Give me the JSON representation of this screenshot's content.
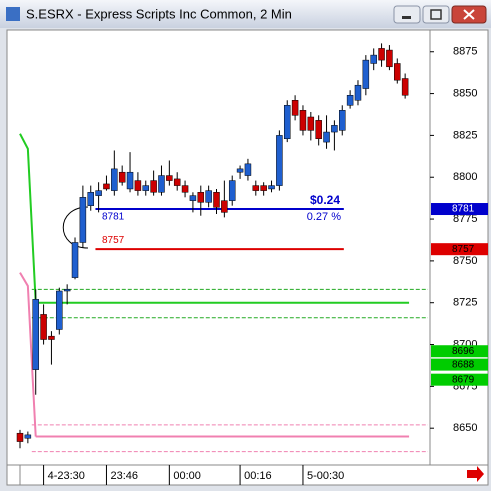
{
  "window": {
    "title": "S.ESRX - Express Scripts Inc Common, 2 Min"
  },
  "chart_data": {
    "type": "candlestick",
    "up_color": "#1f5fcf",
    "down_color": "#cc0000",
    "open": [
      8647,
      8644,
      8685,
      8718,
      8705,
      8709,
      8732,
      8740,
      8761,
      8783,
      8789,
      8796,
      8792,
      8803,
      8793,
      8798,
      8792,
      8798,
      8791,
      8801,
      8799,
      8795,
      8786,
      8791,
      8785,
      8791,
      8786,
      8786,
      8803,
      8801,
      8795,
      8795,
      8793,
      8795,
      8823,
      8846,
      8840,
      8836,
      8834,
      8821,
      8827,
      8828,
      8843,
      8846,
      8853,
      8868,
      8877,
      8876,
      8868,
      8859
    ],
    "high": [
      8649,
      8648,
      8733,
      8724,
      8708,
      8734,
      8736,
      8764,
      8795,
      8795,
      8797,
      8801,
      8816,
      8807,
      8815,
      8803,
      8798,
      8804,
      8807,
      8810,
      8803,
      8798,
      8791,
      8795,
      8795,
      8793,
      8798,
      8801,
      8807,
      8811,
      8798,
      8797,
      8798,
      8828,
      8846,
      8849,
      8843,
      8839,
      8837,
      8837,
      8834,
      8843,
      8852,
      8858,
      8873,
      8877,
      8880,
      8879,
      8871,
      8862
    ],
    "low": [
      8638,
      8641,
      8670,
      8700,
      8688,
      8706,
      8724,
      8739,
      8758,
      8780,
      8779,
      8792,
      8789,
      8795,
      8791,
      8789,
      8789,
      8789,
      8789,
      8795,
      8792,
      8788,
      8779,
      8777,
      8782,
      8778,
      8776,
      8783,
      8799,
      8798,
      8789,
      8789,
      8791,
      8792,
      8821,
      8834,
      8825,
      8822,
      8819,
      8817,
      8816,
      8825,
      8841,
      8843,
      8849,
      8864,
      8866,
      8864,
      8856,
      8847
    ],
    "close": [
      8642,
      8646,
      8727,
      8703,
      8703,
      8732,
      8733,
      8761,
      8788,
      8791,
      8792,
      8793,
      8805,
      8797,
      8803,
      8792,
      8795,
      8791,
      8801,
      8798,
      8795,
      8791,
      8789,
      8785,
      8792,
      8782,
      8779,
      8798,
      8805,
      8808,
      8792,
      8792,
      8795,
      8825,
      8843,
      8837,
      8828,
      8828,
      8823,
      8827,
      8831,
      8840,
      8849,
      8855,
      8870,
      8873,
      8870,
      8866,
      8858,
      8849
    ],
    "ylim": [
      8628,
      8888
    ],
    "yticks": [
      8875,
      8850,
      8825,
      8800,
      8775,
      8750,
      8725,
      8700,
      8675,
      8650
    ],
    "xticks": [
      {
        "value": 3,
        "label": "4-23:30"
      },
      {
        "value": 11,
        "label": "23:46"
      },
      {
        "value": 19,
        "label": "00:00"
      },
      {
        "value": 28,
        "label": "00:16"
      },
      {
        "value": 36,
        "label": "5-00:30"
      }
    ],
    "levels": [
      {
        "value": 8781,
        "color": "#0000cc",
        "style": "solid"
      },
      {
        "value": 8757,
        "color": "#dd0000",
        "style": "solid"
      },
      {
        "value": 8725,
        "color": "#22cc22",
        "style": "solid"
      },
      {
        "value": 8733,
        "color": "#22aa22",
        "style": "dashed"
      },
      {
        "value": 8716,
        "color": "#22aa22",
        "style": "dashed"
      },
      {
        "value": 8645,
        "color": "#f080b0",
        "style": "solid"
      },
      {
        "value": 8652,
        "color": "#f080b0",
        "style": "dashed"
      },
      {
        "value": 8636,
        "color": "#f080b0",
        "style": "dashed"
      }
    ],
    "indicators": [
      {
        "color": "#22cc22",
        "values": [
          8826,
          8817,
          8725
        ]
      },
      {
        "color": "#f080b0",
        "values": [
          8743,
          8735,
          8645
        ]
      }
    ],
    "price_tags": [
      {
        "value": 8781,
        "color": "#0000cc"
      },
      {
        "value": 8757,
        "color": "#dd0000"
      },
      {
        "value": 8696,
        "color": "#00cc00"
      },
      {
        "value": 8688,
        "color": "#00cc00"
      },
      {
        "value": 8679,
        "color": "#00cc00"
      }
    ],
    "change": "$0.24",
    "change_pct": "0.27 %"
  }
}
